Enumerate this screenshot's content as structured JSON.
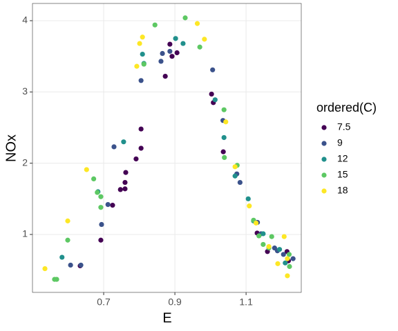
{
  "chart_data": {
    "type": "scatter",
    "x_label": "E",
    "y_label": "NOx",
    "legend_title": "ordered(C)",
    "xlim": [
      0.5,
      1.255
    ],
    "ylim": [
      0.187,
      4.242
    ],
    "xticks": [
      0.7,
      0.9,
      1.1
    ],
    "yticks": [
      1,
      2,
      3,
      4
    ],
    "grid": true,
    "legend_position": "right",
    "series": [
      {
        "name": "7.5",
        "color": "#440154",
        "x": [
          0.886,
          0.906,
          0.892,
          0.873,
          0.791,
          0.805,
          0.805,
          0.762,
          0.76,
          0.76,
          0.747,
          0.725,
          0.692,
          0.634,
          1.003,
          1.008,
          1.036,
          1.131,
          1.16,
          1.215,
          1.219
        ],
        "values": [
          3.67,
          3.55,
          3.5,
          3.22,
          2.06,
          2.21,
          2.48,
          1.87,
          1.73,
          1.64,
          1.63,
          1.41,
          0.92,
          0.56,
          2.97,
          2.85,
          2.16,
          1.02,
          0.76,
          0.76,
          0.63
        ]
      },
      {
        "name": "9",
        "color": "#3b528b",
        "x": [
          0.865,
          0.886,
          0.861,
          0.805,
          0.729,
          0.712,
          0.694,
          0.607,
          0.636,
          1.006,
          1.035,
          1.074,
          1.083,
          1.132,
          1.142,
          1.18,
          1.188,
          1.205,
          1.232
        ],
        "values": [
          3.54,
          3.57,
          3.43,
          3.16,
          2.23,
          1.42,
          1.14,
          0.57,
          0.57,
          3.31,
          2.6,
          1.85,
          1.73,
          1.17,
          1.01,
          0.81,
          0.77,
          0.72,
          0.66
        ]
      },
      {
        "name": "12",
        "color": "#21908c",
        "x": [
          0.902,
          0.923,
          0.809,
          0.813,
          0.756,
          0.684,
          0.583,
          1.013,
          1.038,
          1.069,
          1.106,
          1.121,
          1.148,
          1.194,
          1.21
        ],
        "values": [
          3.75,
          3.68,
          3.53,
          3.4,
          2.3,
          1.6,
          0.68,
          2.89,
          2.36,
          1.82,
          1.5,
          1.19,
          1.01,
          0.79,
          0.6
        ]
      },
      {
        "name": "15",
        "color": "#5dc863",
        "x": [
          0.844,
          0.929,
          0.97,
          0.813,
          0.672,
          0.682,
          0.692,
          0.692,
          0.599,
          0.562,
          0.568,
          1.038,
          1.039,
          1.075,
          1.121,
          1.136,
          1.148,
          1.172,
          1.164,
          1.222,
          1.221
        ],
        "values": [
          3.94,
          4.04,
          3.63,
          3.39,
          1.78,
          1.59,
          1.53,
          1.38,
          0.92,
          0.37,
          0.37,
          2.75,
          2.08,
          1.97,
          1.2,
          0.98,
          0.86,
          0.97,
          0.81,
          0.55,
          0.72
        ]
      },
      {
        "name": "18",
        "color": "#fde725",
        "x": [
          0.963,
          0.983,
          0.809,
          0.801,
          0.793,
          0.652,
          0.599,
          0.535,
          1.043,
          1.069,
          1.109,
          1.128,
          1.164,
          1.189,
          1.207,
          1.216,
          1.216
        ],
        "values": [
          3.96,
          3.74,
          3.77,
          3.68,
          3.36,
          1.91,
          1.19,
          0.52,
          2.58,
          1.95,
          1.4,
          1.16,
          0.83,
          0.59,
          0.97,
          0.66,
          0.42
        ]
      }
    ]
  }
}
